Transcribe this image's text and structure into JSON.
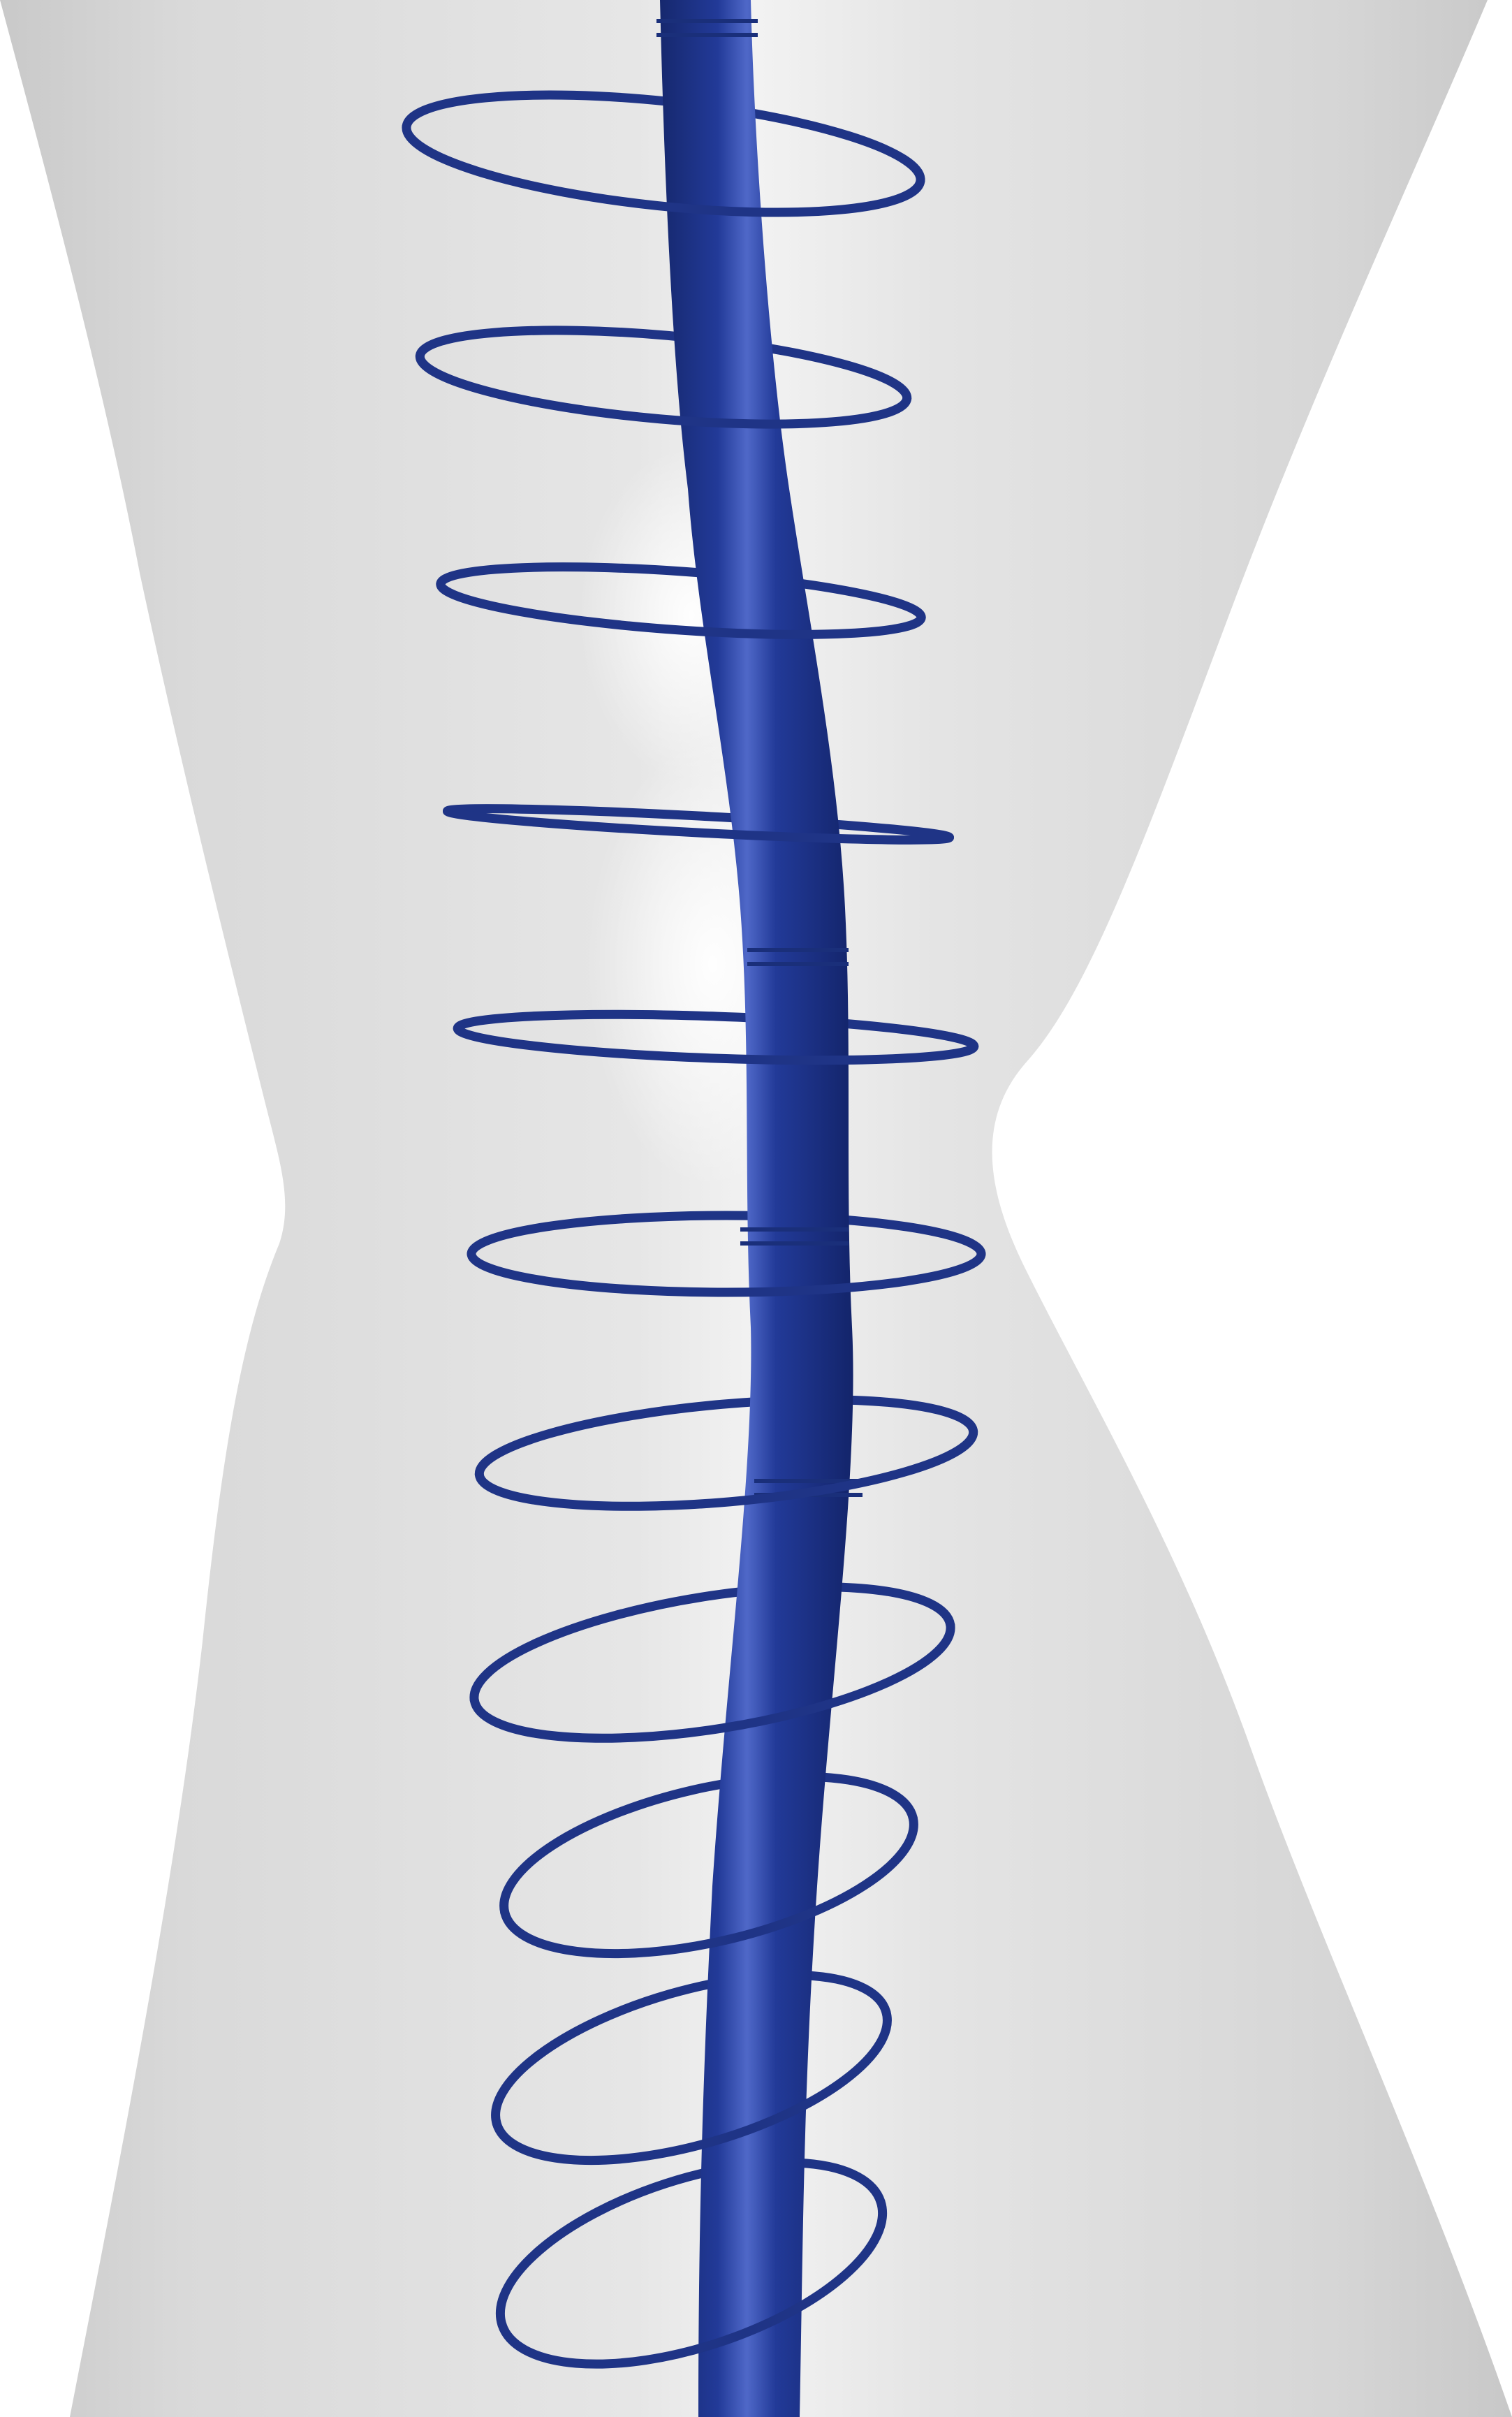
{
  "scene": {
    "ring_count": 11,
    "colors": {
      "background": "#ffffff",
      "body": "#dcdcdc",
      "body_highlight": "#f7f7f7",
      "rod": "#1f3486",
      "rod_highlight": "#4a63c4",
      "rings": "#1f3486"
    }
  }
}
